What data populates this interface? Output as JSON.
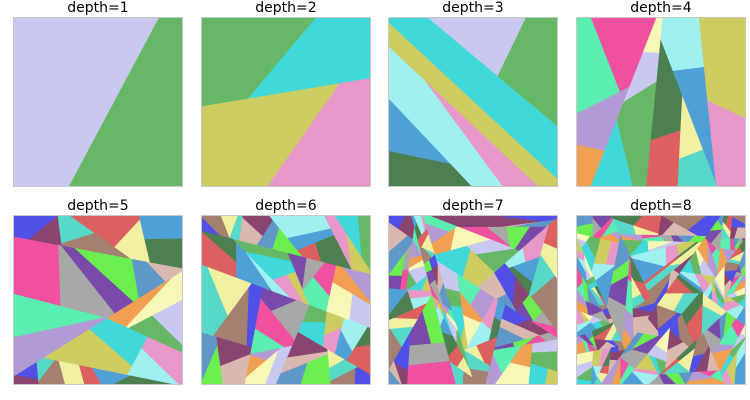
{
  "panels": [
    {
      "title": "depth=1"
    },
    {
      "title": "depth=2"
    },
    {
      "title": "depth=3"
    },
    {
      "title": "depth=4"
    },
    {
      "title": "depth=5"
    },
    {
      "title": "depth=6"
    },
    {
      "title": "depth=7"
    },
    {
      "title": "depth=8"
    }
  ],
  "palette": [
    "#f0a050",
    "#5f98c8",
    "#dc6060",
    "#66b866",
    "#a8a8a8",
    "#a48070",
    "#e898c8",
    "#b49ad4",
    "#d9b8b0",
    "#4c8050",
    "#c8c8f0",
    "#7a4aaa",
    "#58d8c8",
    "#cccc60",
    "#5aeeb0",
    "#8a4470",
    "#50a0d8",
    "#f7f7b8",
    "#6aee50",
    "#f0f0a0",
    "#40d8d8",
    "#f050a0",
    "#5050e8",
    "#a0f0f0"
  ]
}
